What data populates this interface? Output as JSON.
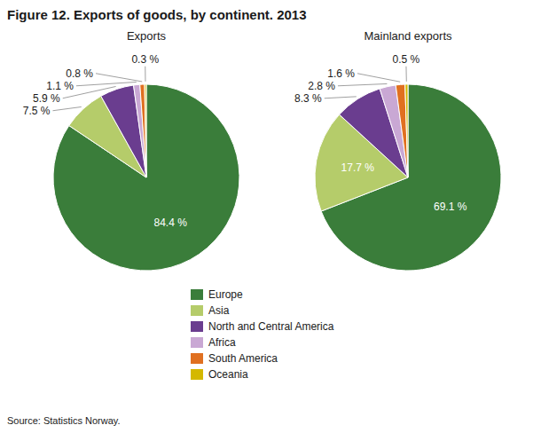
{
  "chart_data": {
    "type": "pie",
    "title": "Figure 12. Exports of goods, by continent. 2013",
    "annotations": [
      "Source: Statistics Norway."
    ],
    "categories": [
      "Europe",
      "Asia",
      "North and Central America",
      "Africa",
      "South America",
      "Oceania"
    ],
    "colors": [
      "#3a7d3a",
      "#b5cc6a",
      "#6a3d8f",
      "#c9a8d4",
      "#e07020",
      "#d4b800"
    ],
    "series": [
      {
        "name": "Exports",
        "values": [
          84.4,
          7.5,
          5.9,
          1.1,
          0.8,
          0.3
        ],
        "value_labels": [
          "84.4 %",
          "7.5 %",
          "5.9 %",
          "1.1 %",
          "0.8 %",
          "0.3 %"
        ]
      },
      {
        "name": "Mainland exports",
        "values": [
          69.1,
          17.7,
          8.3,
          2.8,
          1.6,
          0.5
        ],
        "value_labels": [
          "69.1 %",
          "17.7 %",
          "8.3 %",
          "2.8 %",
          "1.6 %",
          "0.5 %"
        ]
      }
    ],
    "data_labels": true,
    "legend": "bottom"
  }
}
